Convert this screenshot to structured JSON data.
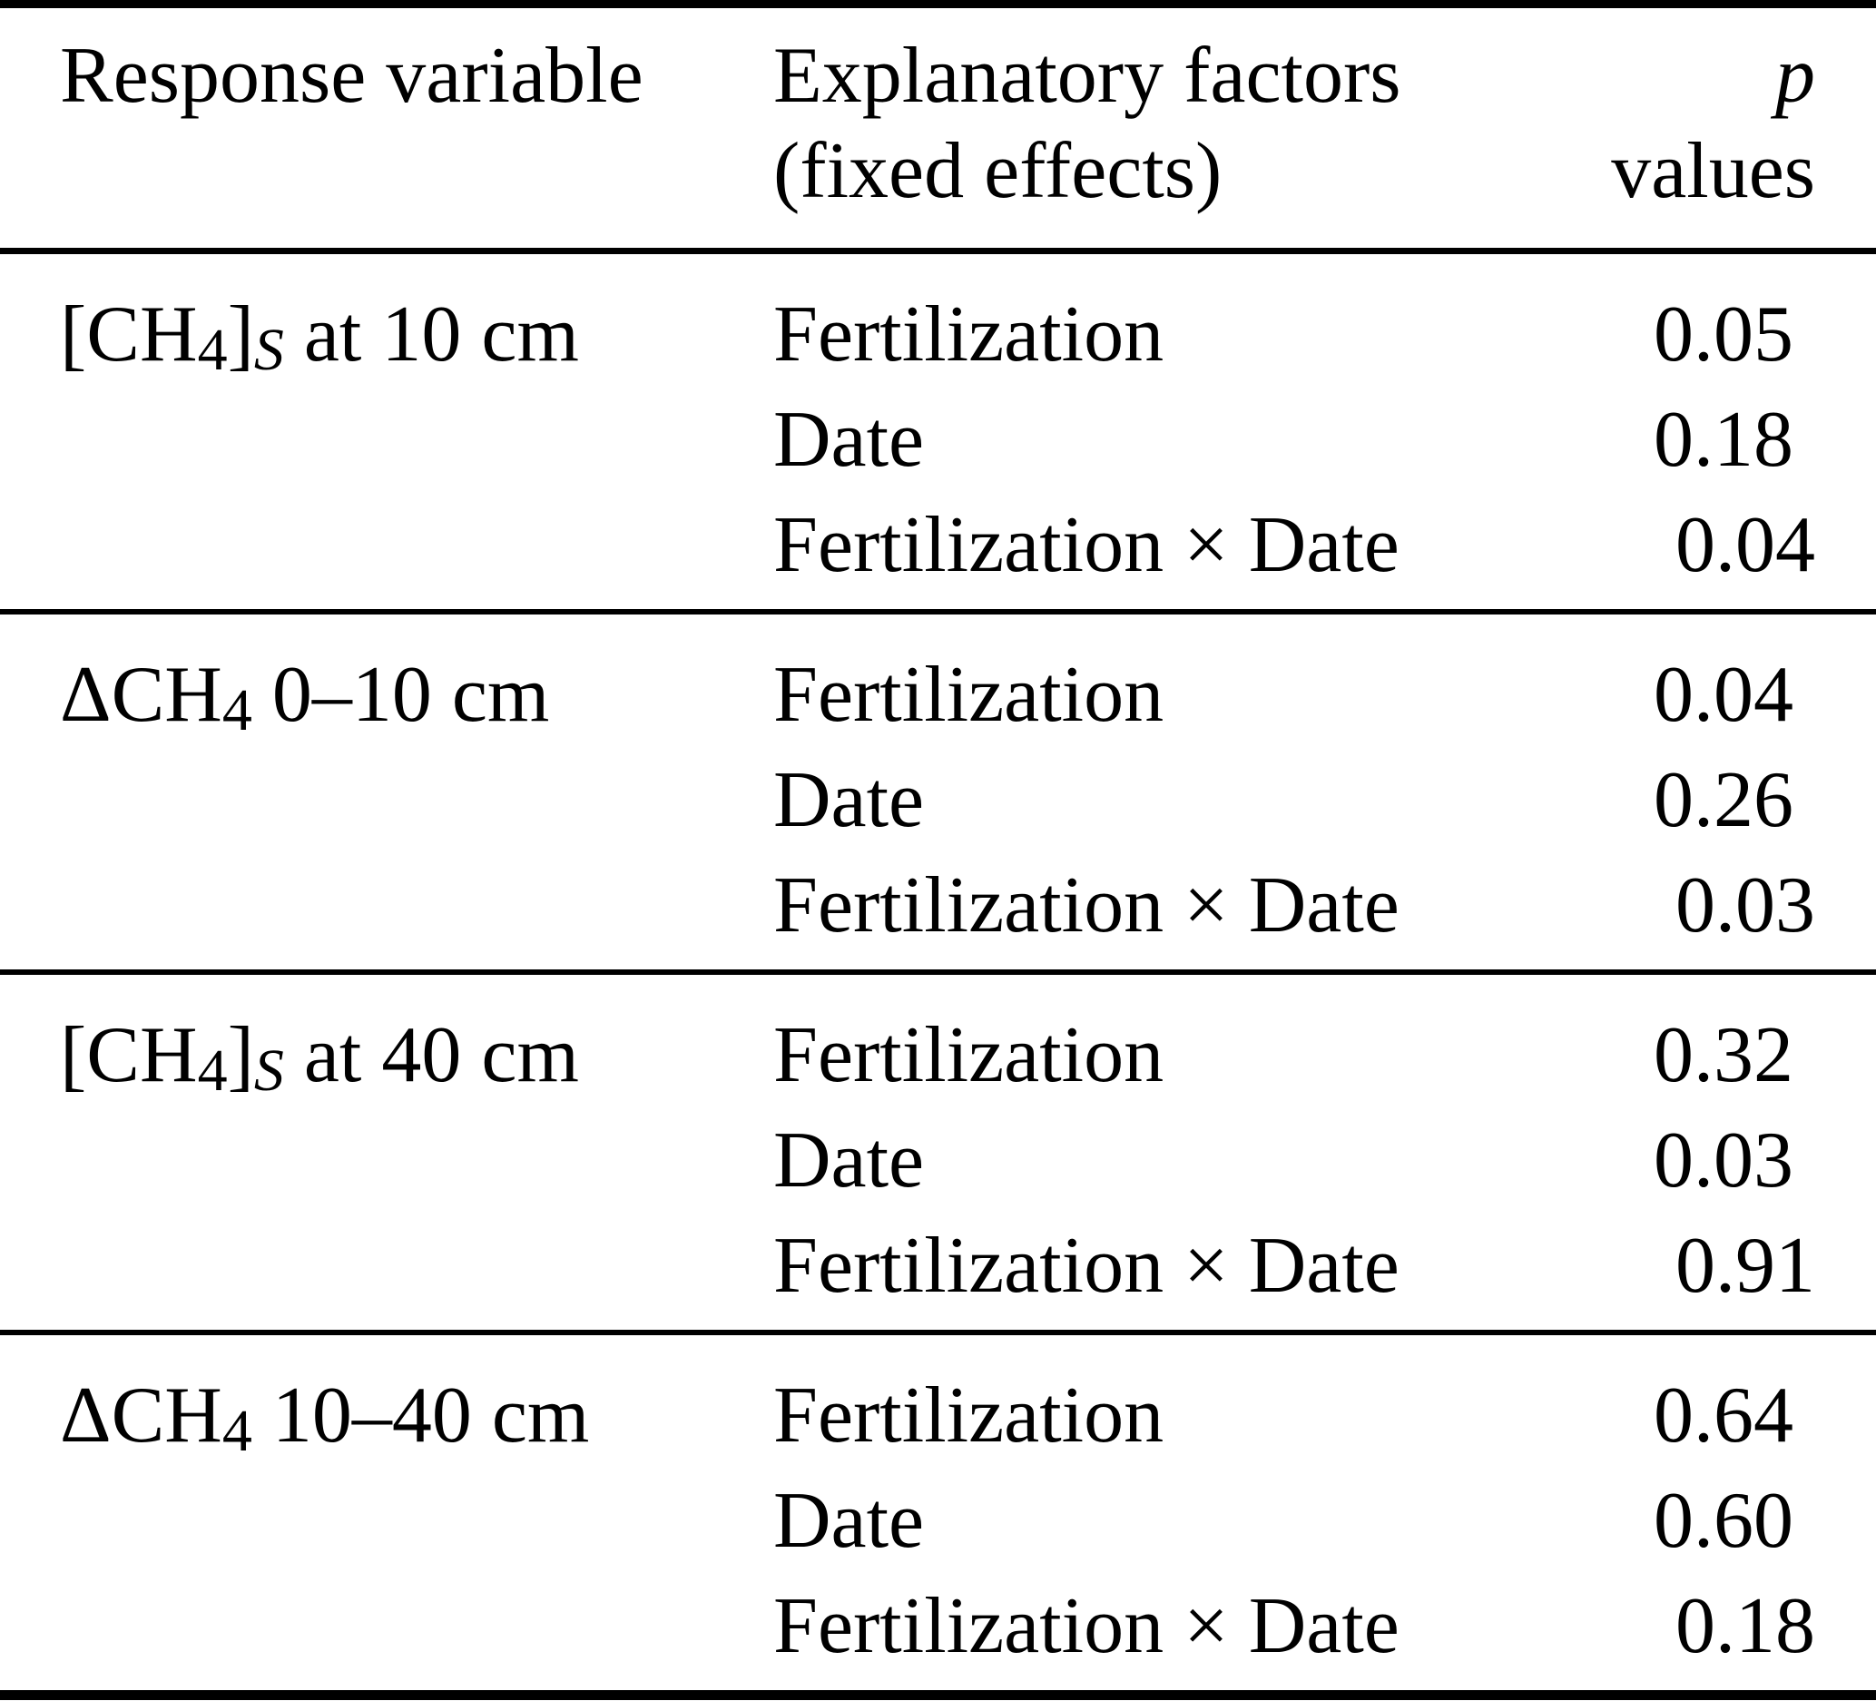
{
  "colors": {
    "text": "#000000",
    "background": "#ffffff",
    "rule": "#000000"
  },
  "table": {
    "header": {
      "col1": "Response variable",
      "col2_line1": "Explanatory factors",
      "col2_line2": "(fixed effects)",
      "col3_line1": "p",
      "col3_line2": "values"
    },
    "blocks": [
      {
        "response_segments": [
          {
            "t": "[CH"
          },
          {
            "t": "4",
            "sub": true
          },
          {
            "t": "]"
          },
          {
            "t": "S",
            "sub": true,
            "italic": true
          },
          {
            "t": " at 10 cm"
          }
        ],
        "rows": [
          {
            "factor": "Fertilization",
            "p": "0.05"
          },
          {
            "factor": "Date",
            "p": "0.18"
          },
          {
            "factor": "Fertilization × Date",
            "p": "0.04"
          }
        ]
      },
      {
        "response_segments": [
          {
            "t": "ΔCH"
          },
          {
            "t": "4",
            "sub": true
          },
          {
            "t": " 0–10 cm"
          }
        ],
        "rows": [
          {
            "factor": "Fertilization",
            "p": "0.04"
          },
          {
            "factor": "Date",
            "p": "0.26"
          },
          {
            "factor": "Fertilization × Date",
            "p": "0.03"
          }
        ]
      },
      {
        "response_segments": [
          {
            "t": "[CH"
          },
          {
            "t": "4",
            "sub": true
          },
          {
            "t": "]"
          },
          {
            "t": "S",
            "sub": true,
            "italic": true
          },
          {
            "t": " at 40 cm"
          }
        ],
        "rows": [
          {
            "factor": "Fertilization",
            "p": "0.32"
          },
          {
            "factor": "Date",
            "p": "0.03"
          },
          {
            "factor": "Fertilization × Date",
            "p": "0.91"
          }
        ]
      },
      {
        "response_segments": [
          {
            "t": "ΔCH"
          },
          {
            "t": "4",
            "sub": true
          },
          {
            "t": " 10–40 cm"
          }
        ],
        "rows": [
          {
            "factor": "Fertilization",
            "p": "0.64"
          },
          {
            "factor": "Date",
            "p": "0.60"
          },
          {
            "factor": "Fertilization × Date",
            "p": "0.18"
          }
        ]
      }
    ]
  }
}
